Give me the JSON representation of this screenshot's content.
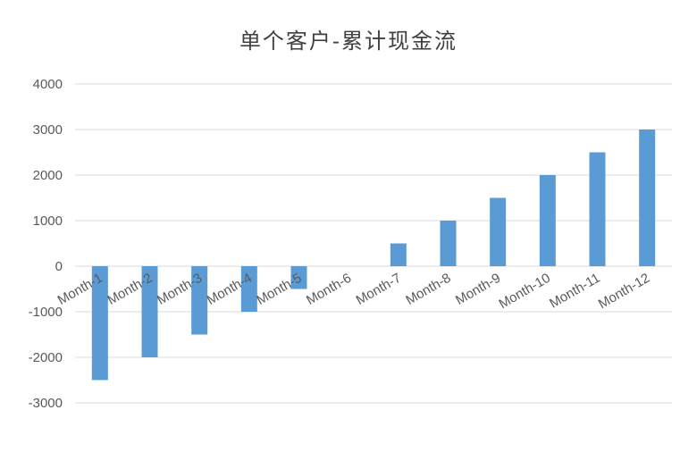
{
  "chart_data": {
    "type": "bar",
    "title": "单个客户-累计现金流",
    "categories": [
      "Month-1",
      "Month-2",
      "Month-3",
      "Month-4",
      "Month-5",
      "Month-6",
      "Month-7",
      "Month-8",
      "Month-9",
      "Month-10",
      "Month-11",
      "Month-12"
    ],
    "values": [
      -2500,
      -2000,
      -1500,
      -1000,
      -500,
      0,
      500,
      1000,
      1500,
      2000,
      2500,
      3000
    ],
    "yticks": [
      "4000",
      "3000",
      "2000",
      "1000",
      "0",
      "-1000",
      "-2000",
      "-3000"
    ],
    "ylim": [
      -3000,
      4000
    ],
    "grid": true,
    "xlabel": "",
    "ylabel": "",
    "bar_color": "#5B9BD5",
    "grid_color": "#D9D9D9"
  }
}
